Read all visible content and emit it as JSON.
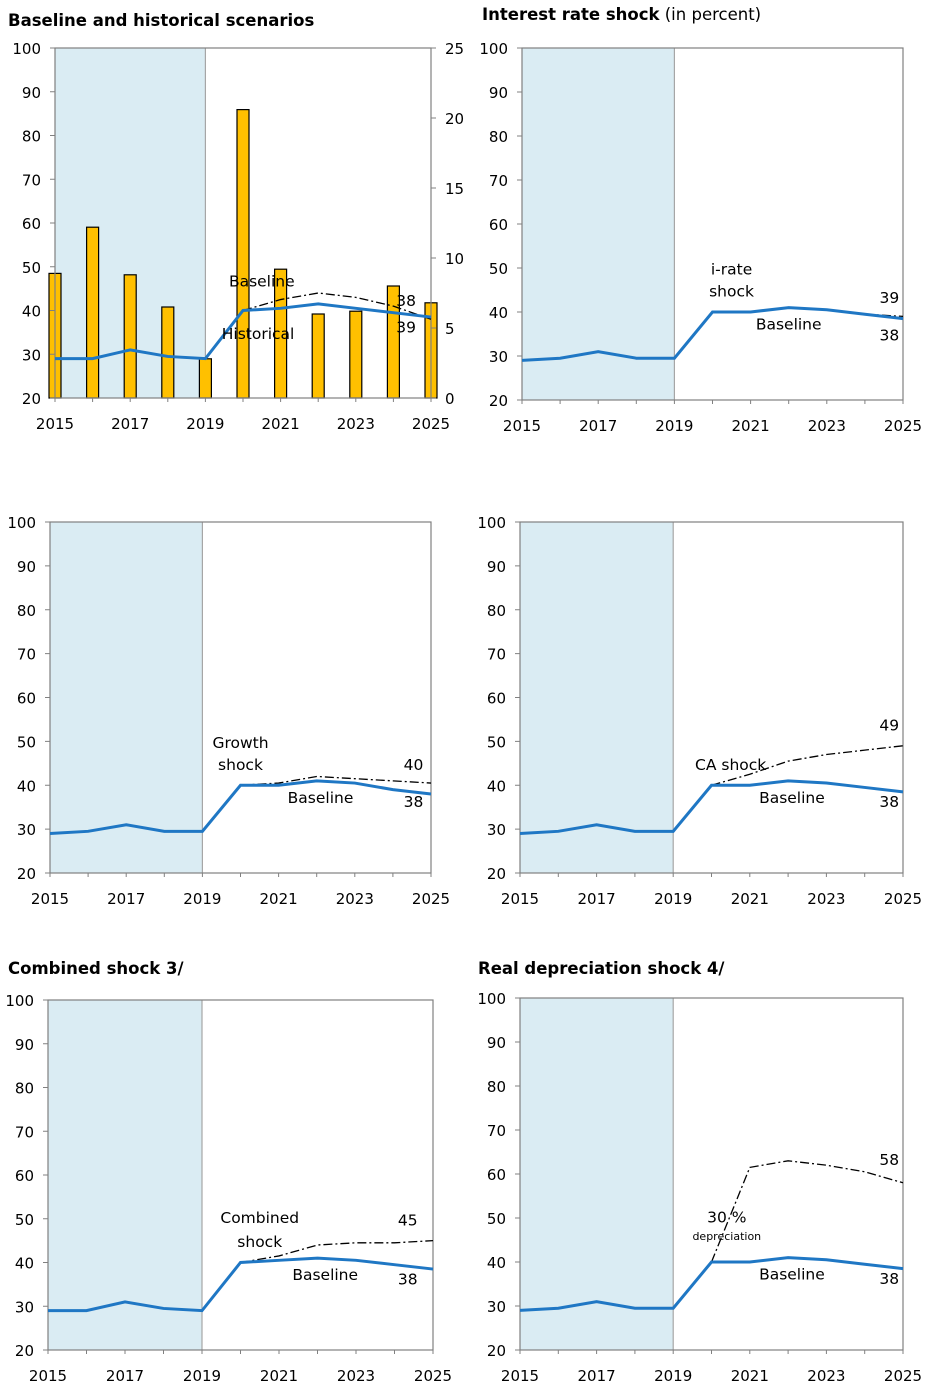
{
  "colors": {
    "baseline": "#1f77c4",
    "shade": "#daecf3",
    "bar_fill": "#ffc000",
    "scenario": "#000000",
    "axis": "#808080"
  },
  "chart_data": [
    {
      "type": "bar+line",
      "title_bold": "Baseline and historical scenarios",
      "title_rest": "",
      "x": [
        2015,
        2016,
        2017,
        2018,
        2019,
        2020,
        2021,
        2022,
        2023,
        2024,
        2025
      ],
      "x_ticks": [
        "2015",
        "2017",
        "2019",
        "2021",
        "2023",
        "2025"
      ],
      "ylim": [
        20,
        100
      ],
      "y_ticks": [
        "20",
        "30",
        "40",
        "50",
        "60",
        "70",
        "80",
        "90",
        "100"
      ],
      "y2lim": [
        0,
        25
      ],
      "y2_ticks": [
        "0",
        "5",
        "10",
        "15",
        "20",
        "25"
      ],
      "shaded_range": [
        2015,
        2019
      ],
      "bars": [
        8.9,
        12.2,
        8.8,
        6.5,
        2.8,
        20.6,
        9.2,
        6.0,
        6.2,
        8.0,
        6.8
      ],
      "baseline": [
        29.0,
        29.0,
        31.0,
        29.5,
        29.0,
        40.0,
        40.5,
        41.5,
        40.5,
        39.5,
        38.5
      ],
      "scenario": [
        null,
        null,
        null,
        null,
        null,
        40.0,
        42.5,
        44.0,
        43.0,
        41.0,
        38.0
      ],
      "labels": [
        {
          "text": "Baseline",
          "x": 2020.5,
          "y": 45.5,
          "anchor": "middle"
        },
        {
          "text": "Historical",
          "x": 2020.4,
          "y": 33.5,
          "anchor": "middle"
        },
        {
          "text": "38",
          "x": 2024.6,
          "y": 41.0,
          "anchor": "end"
        },
        {
          "text": "39",
          "x": 2024.6,
          "y": 35.0,
          "anchor": "end"
        }
      ]
    },
    {
      "type": "line",
      "title_bold": "Interest rate shock",
      "title_rest": " (in percent)",
      "x": [
        2015,
        2016,
        2017,
        2018,
        2019,
        2020,
        2021,
        2022,
        2023,
        2024,
        2025
      ],
      "x_ticks": [
        "2015",
        "2017",
        "2019",
        "2021",
        "2023",
        "2025"
      ],
      "ylim": [
        20,
        100
      ],
      "y_ticks": [
        "20",
        "30",
        "40",
        "50",
        "60",
        "70",
        "80",
        "90",
        "100"
      ],
      "shaded_range": [
        2015,
        2019
      ],
      "baseline": [
        29.0,
        29.5,
        31.0,
        29.5,
        29.5,
        40.0,
        40.0,
        41.0,
        40.5,
        39.5,
        38.5
      ],
      "scenario": [
        null,
        null,
        null,
        null,
        null,
        40.0,
        40.0,
        41.0,
        40.5,
        39.5,
        39.0
      ],
      "labels": [
        {
          "text": "i-rate",
          "x": 2020.5,
          "y": 48.5,
          "anchor": "middle"
        },
        {
          "text": "shock",
          "x": 2020.5,
          "y": 43.5,
          "anchor": "middle"
        },
        {
          "text": "Baseline",
          "x": 2022.0,
          "y": 36.0,
          "anchor": "middle"
        },
        {
          "text": "39",
          "x": 2024.9,
          "y": 42.0,
          "anchor": "end"
        },
        {
          "text": "38",
          "x": 2024.9,
          "y": 33.5,
          "anchor": "end"
        }
      ]
    },
    {
      "type": "line",
      "title_bold": "",
      "title_rest": "",
      "x": [
        2015,
        2016,
        2017,
        2018,
        2019,
        2020,
        2021,
        2022,
        2023,
        2024,
        2025
      ],
      "x_ticks": [
        "2015",
        "2017",
        "2019",
        "2021",
        "2023",
        "2025"
      ],
      "ylim": [
        20,
        100
      ],
      "y_ticks": [
        "20",
        "30",
        "40",
        "50",
        "60",
        "70",
        "80",
        "90",
        "100"
      ],
      "shaded_range": [
        2015,
        2019
      ],
      "baseline": [
        29.0,
        29.5,
        31.0,
        29.5,
        29.5,
        40.0,
        40.0,
        41.0,
        40.5,
        39.0,
        38.0
      ],
      "scenario": [
        null,
        null,
        null,
        null,
        null,
        40.0,
        40.5,
        42.0,
        41.5,
        41.0,
        40.5
      ],
      "labels": [
        {
          "text": "Growth",
          "x": 2020.0,
          "y": 48.5,
          "anchor": "middle"
        },
        {
          "text": "shock",
          "x": 2020.0,
          "y": 43.5,
          "anchor": "middle"
        },
        {
          "text": "Baseline",
          "x": 2022.1,
          "y": 36.0,
          "anchor": "middle"
        },
        {
          "text": "40",
          "x": 2024.8,
          "y": 43.5,
          "anchor": "end"
        },
        {
          "text": "38",
          "x": 2024.8,
          "y": 35.0,
          "anchor": "end"
        }
      ]
    },
    {
      "type": "line",
      "title_bold": "",
      "title_rest": "",
      "x": [
        2015,
        2016,
        2017,
        2018,
        2019,
        2020,
        2021,
        2022,
        2023,
        2024,
        2025
      ],
      "x_ticks": [
        "2015",
        "2017",
        "2019",
        "2021",
        "2023",
        "2025"
      ],
      "ylim": [
        20,
        100
      ],
      "y_ticks": [
        "20",
        "30",
        "40",
        "50",
        "60",
        "70",
        "80",
        "90",
        "100"
      ],
      "shaded_range": [
        2015,
        2019
      ],
      "baseline": [
        29.0,
        29.5,
        31.0,
        29.5,
        29.5,
        40.0,
        40.0,
        41.0,
        40.5,
        39.5,
        38.5
      ],
      "scenario": [
        null,
        null,
        null,
        null,
        null,
        40.0,
        42.5,
        45.5,
        47.0,
        48.0,
        49.0
      ],
      "labels": [
        {
          "text": "CA shock",
          "x": 2020.5,
          "y": 43.5,
          "anchor": "middle"
        },
        {
          "text": "Baseline",
          "x": 2022.1,
          "y": 36.0,
          "anchor": "middle"
        },
        {
          "text": "49",
          "x": 2024.9,
          "y": 52.5,
          "anchor": "end"
        },
        {
          "text": "38",
          "x": 2024.9,
          "y": 35.0,
          "anchor": "end"
        }
      ]
    },
    {
      "type": "line",
      "title_bold": "Combined shock  3/",
      "title_rest": "",
      "x": [
        2015,
        2016,
        2017,
        2018,
        2019,
        2020,
        2021,
        2022,
        2023,
        2024,
        2025
      ],
      "x_ticks": [
        "2015",
        "2017",
        "2019",
        "2021",
        "2023",
        "2025"
      ],
      "ylim": [
        20,
        100
      ],
      "y_ticks": [
        "20",
        "30",
        "40",
        "50",
        "60",
        "70",
        "80",
        "90",
        "100"
      ],
      "shaded_range": [
        2015,
        2019
      ],
      "baseline": [
        29.0,
        29.0,
        31.0,
        29.5,
        29.0,
        40.0,
        40.5,
        41.0,
        40.5,
        39.5,
        38.5
      ],
      "scenario": [
        null,
        null,
        null,
        null,
        null,
        40.0,
        41.5,
        44.0,
        44.5,
        44.5,
        45.0
      ],
      "labels": [
        {
          "text": "Combined",
          "x": 2020.5,
          "y": 49.0,
          "anchor": "middle"
        },
        {
          "text": "shock",
          "x": 2020.5,
          "y": 43.5,
          "anchor": "middle"
        },
        {
          "text": "Baseline",
          "x": 2022.2,
          "y": 36.0,
          "anchor": "middle"
        },
        {
          "text": "45",
          "x": 2024.6,
          "y": 48.5,
          "anchor": "end"
        },
        {
          "text": "38",
          "x": 2024.6,
          "y": 35.0,
          "anchor": "end"
        }
      ]
    },
    {
      "type": "line",
      "title_bold": "Real depreciation shock  4/",
      "title_rest": "",
      "x": [
        2015,
        2016,
        2017,
        2018,
        2019,
        2020,
        2021,
        2022,
        2023,
        2024,
        2025
      ],
      "x_ticks": [
        "2015",
        "2017",
        "2019",
        "2021",
        "2023",
        "2025"
      ],
      "ylim": [
        20,
        100
      ],
      "y_ticks": [
        "20",
        "30",
        "40",
        "50",
        "60",
        "70",
        "80",
        "90",
        "100"
      ],
      "shaded_range": [
        2015,
        2019
      ],
      "baseline": [
        29.0,
        29.5,
        31.0,
        29.5,
        29.5,
        40.0,
        40.0,
        41.0,
        40.5,
        39.5,
        38.5
      ],
      "scenario": [
        null,
        null,
        null,
        null,
        null,
        40.0,
        61.5,
        63.0,
        62.0,
        60.5,
        58.0
      ],
      "labels": [
        {
          "text": "30 %",
          "x": 2020.4,
          "y": 49.0,
          "anchor": "middle"
        },
        {
          "text": "depreciation",
          "x": 2020.4,
          "y": 45.0,
          "anchor": "middle",
          "small": true
        },
        {
          "text": "Baseline",
          "x": 2022.1,
          "y": 36.0,
          "anchor": "middle"
        },
        {
          "text": "58",
          "x": 2024.9,
          "y": 62.0,
          "anchor": "end"
        },
        {
          "text": "38",
          "x": 2024.9,
          "y": 35.0,
          "anchor": "end"
        }
      ]
    }
  ]
}
